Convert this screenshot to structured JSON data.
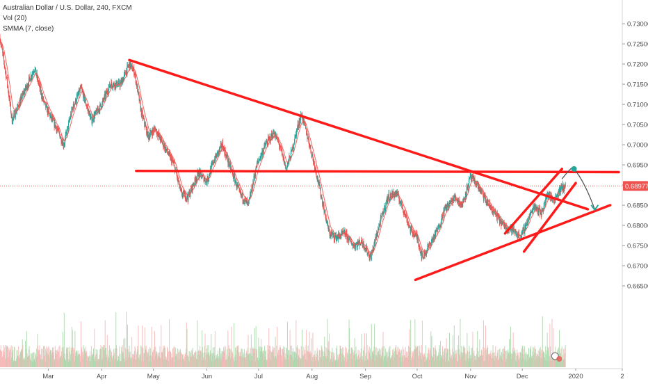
{
  "legend": {
    "symbol_line": "Australian Dollar / U.S. Dollar, 240, FXCM",
    "volume_line": "Vol (20)",
    "smma_line": "SMMA (7, close)"
  },
  "colors": {
    "up": "#26a69a",
    "down": "#ef5350",
    "drawing": "#ff1a1a",
    "smma": "#ef5350",
    "price_tag": "#ef5350",
    "arrow": "#555555",
    "vol_up": "#a5d6a7",
    "vol_down": "#f4b5b5"
  },
  "current_price_label": "0.68977",
  "chart_data": {
    "type": "candlestick",
    "title": "Australian Dollar / U.S. Dollar, 240, FXCM",
    "x_range": [
      "2019-02-01",
      "2020-01-28"
    ],
    "y_range": [
      0.645,
      0.7345
    ],
    "current_price": 0.68977,
    "price_ticks": [
      "0.73000",
      "0.72500",
      "0.72000",
      "0.71500",
      "0.71000",
      "0.70500",
      "0.70000",
      "0.69500",
      "0.69000",
      "0.68500",
      "0.68000",
      "0.67500",
      "0.67000",
      "0.66500"
    ],
    "month_ticks": [
      {
        "label": "Mar",
        "date": "2019-03-01"
      },
      {
        "label": "Apr",
        "date": "2019-04-01"
      },
      {
        "label": "May",
        "date": "2019-05-01"
      },
      {
        "label": "Jun",
        "date": "2019-06-01"
      },
      {
        "label": "Jul",
        "date": "2019-07-01"
      },
      {
        "label": "Aug",
        "date": "2019-08-01"
      },
      {
        "label": "Sep",
        "date": "2019-09-01"
      },
      {
        "label": "Oct",
        "date": "2019-10-01"
      },
      {
        "label": "Nov",
        "date": "2019-11-01"
      },
      {
        "label": "Dec",
        "date": "2019-12-01"
      },
      {
        "label": "2020",
        "date": "2020-01-01"
      },
      {
        "label": "2",
        "date": "2020-01-28"
      }
    ],
    "price_path": [
      [
        "2019-02-01",
        0.7265
      ],
      [
        "2019-02-05",
        0.716
      ],
      [
        "2019-02-08",
        0.706
      ],
      [
        "2019-02-14",
        0.712
      ],
      [
        "2019-02-21",
        0.719
      ],
      [
        "2019-02-26",
        0.711
      ],
      [
        "2019-03-01",
        0.708
      ],
      [
        "2019-03-06",
        0.704
      ],
      [
        "2019-03-10",
        0.7
      ],
      [
        "2019-03-15",
        0.709
      ],
      [
        "2019-03-20",
        0.714
      ],
      [
        "2019-03-26",
        0.706
      ],
      [
        "2019-04-01",
        0.71
      ],
      [
        "2019-04-06",
        0.715
      ],
      [
        "2019-04-12",
        0.715
      ],
      [
        "2019-04-17",
        0.72
      ],
      [
        "2019-04-20",
        0.718
      ],
      [
        "2019-04-24",
        0.708
      ],
      [
        "2019-04-28",
        0.702
      ],
      [
        "2019-05-02",
        0.704
      ],
      [
        "2019-05-08",
        0.699
      ],
      [
        "2019-05-13",
        0.695
      ],
      [
        "2019-05-17",
        0.688
      ],
      [
        "2019-05-21",
        0.687
      ],
      [
        "2019-05-27",
        0.693
      ],
      [
        "2019-06-01",
        0.691
      ],
      [
        "2019-06-05",
        0.696
      ],
      [
        "2019-06-10",
        0.7
      ],
      [
        "2019-06-14",
        0.695
      ],
      [
        "2019-06-20",
        0.688
      ],
      [
        "2019-06-25",
        0.685
      ],
      [
        "2019-06-30",
        0.695
      ],
      [
        "2019-07-05",
        0.7
      ],
      [
        "2019-07-10",
        0.703
      ],
      [
        "2019-07-13",
        0.7
      ],
      [
        "2019-07-17",
        0.694
      ],
      [
        "2019-07-20",
        0.698
      ],
      [
        "2019-07-24",
        0.705
      ],
      [
        "2019-07-26",
        0.7075
      ],
      [
        "2019-07-30",
        0.701
      ],
      [
        "2019-08-03",
        0.694
      ],
      [
        "2019-08-07",
        0.686
      ],
      [
        "2019-08-11",
        0.678
      ],
      [
        "2019-08-15",
        0.677
      ],
      [
        "2019-08-20",
        0.678
      ],
      [
        "2019-08-25",
        0.675
      ],
      [
        "2019-08-30",
        0.676
      ],
      [
        "2019-09-04",
        0.672
      ],
      [
        "2019-09-09",
        0.68
      ],
      [
        "2019-09-14",
        0.687
      ],
      [
        "2019-09-19",
        0.688
      ],
      [
        "2019-09-23",
        0.684
      ],
      [
        "2019-09-27",
        0.679
      ],
      [
        "2019-10-01",
        0.677
      ],
      [
        "2019-10-04",
        0.672
      ],
      [
        "2019-10-08",
        0.675
      ],
      [
        "2019-10-13",
        0.679
      ],
      [
        "2019-10-17",
        0.684
      ],
      [
        "2019-10-23",
        0.687
      ],
      [
        "2019-10-27",
        0.685
      ],
      [
        "2019-11-01",
        0.692
      ],
      [
        "2019-11-05",
        0.69
      ],
      [
        "2019-11-10",
        0.686
      ],
      [
        "2019-11-15",
        0.683
      ],
      [
        "2019-11-20",
        0.68
      ],
      [
        "2019-11-25",
        0.679
      ],
      [
        "2019-11-30",
        0.677
      ],
      [
        "2019-12-04",
        0.681
      ],
      [
        "2019-12-08",
        0.685
      ],
      [
        "2019-12-12",
        0.683
      ],
      [
        "2019-12-16",
        0.688
      ],
      [
        "2019-12-19",
        0.686
      ],
      [
        "2019-12-23",
        0.689
      ],
      [
        "2019-12-26",
        0.6898
      ]
    ],
    "drawings": [
      {
        "kind": "trendline",
        "from": [
          "2019-04-17",
          0.721
        ],
        "to": [
          "2020-01-08",
          0.684
        ]
      },
      {
        "kind": "horizontal",
        "from": [
          "2019-04-21",
          0.6935
        ],
        "to": [
          "2020-01-26",
          0.6932
        ]
      },
      {
        "kind": "trendline",
        "from": [
          "2019-09-30",
          0.6665
        ],
        "to": [
          "2020-01-21",
          0.685
        ]
      },
      {
        "kind": "trendline",
        "from": [
          "2019-11-21",
          0.678
        ],
        "to": [
          "2019-12-24",
          0.694
        ]
      },
      {
        "kind": "trendline",
        "from": [
          "2019-12-02",
          0.6735
        ],
        "to": [
          "2020-01-01",
          0.6905
        ]
      }
    ],
    "forecast": [
      [
        "2019-12-24",
        0.6915
      ],
      [
        "2019-12-31",
        0.694
      ],
      [
        "2020-01-06",
        0.691
      ],
      [
        "2020-01-12",
        0.684
      ]
    ]
  }
}
